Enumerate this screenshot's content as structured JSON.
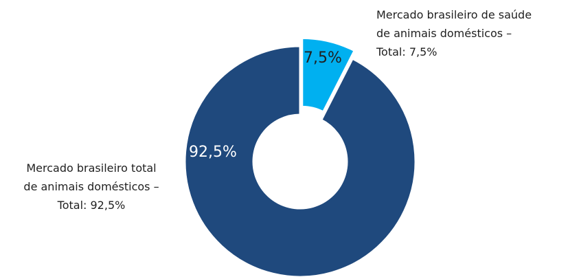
{
  "chart_data": {
    "type": "donut",
    "categories": [
      "Mercado brasileiro de saúde\nde animais domésticos –\nTotal: 7,5%",
      "Mercado brasileiro total\nde animais domésticos –\nTotal: 92,5%"
    ],
    "values": [
      7.5,
      92.5
    ],
    "value_labels": [
      "7,5%",
      "92,5%"
    ],
    "colors": [
      "#00b0f0",
      "#1f497d"
    ]
  }
}
